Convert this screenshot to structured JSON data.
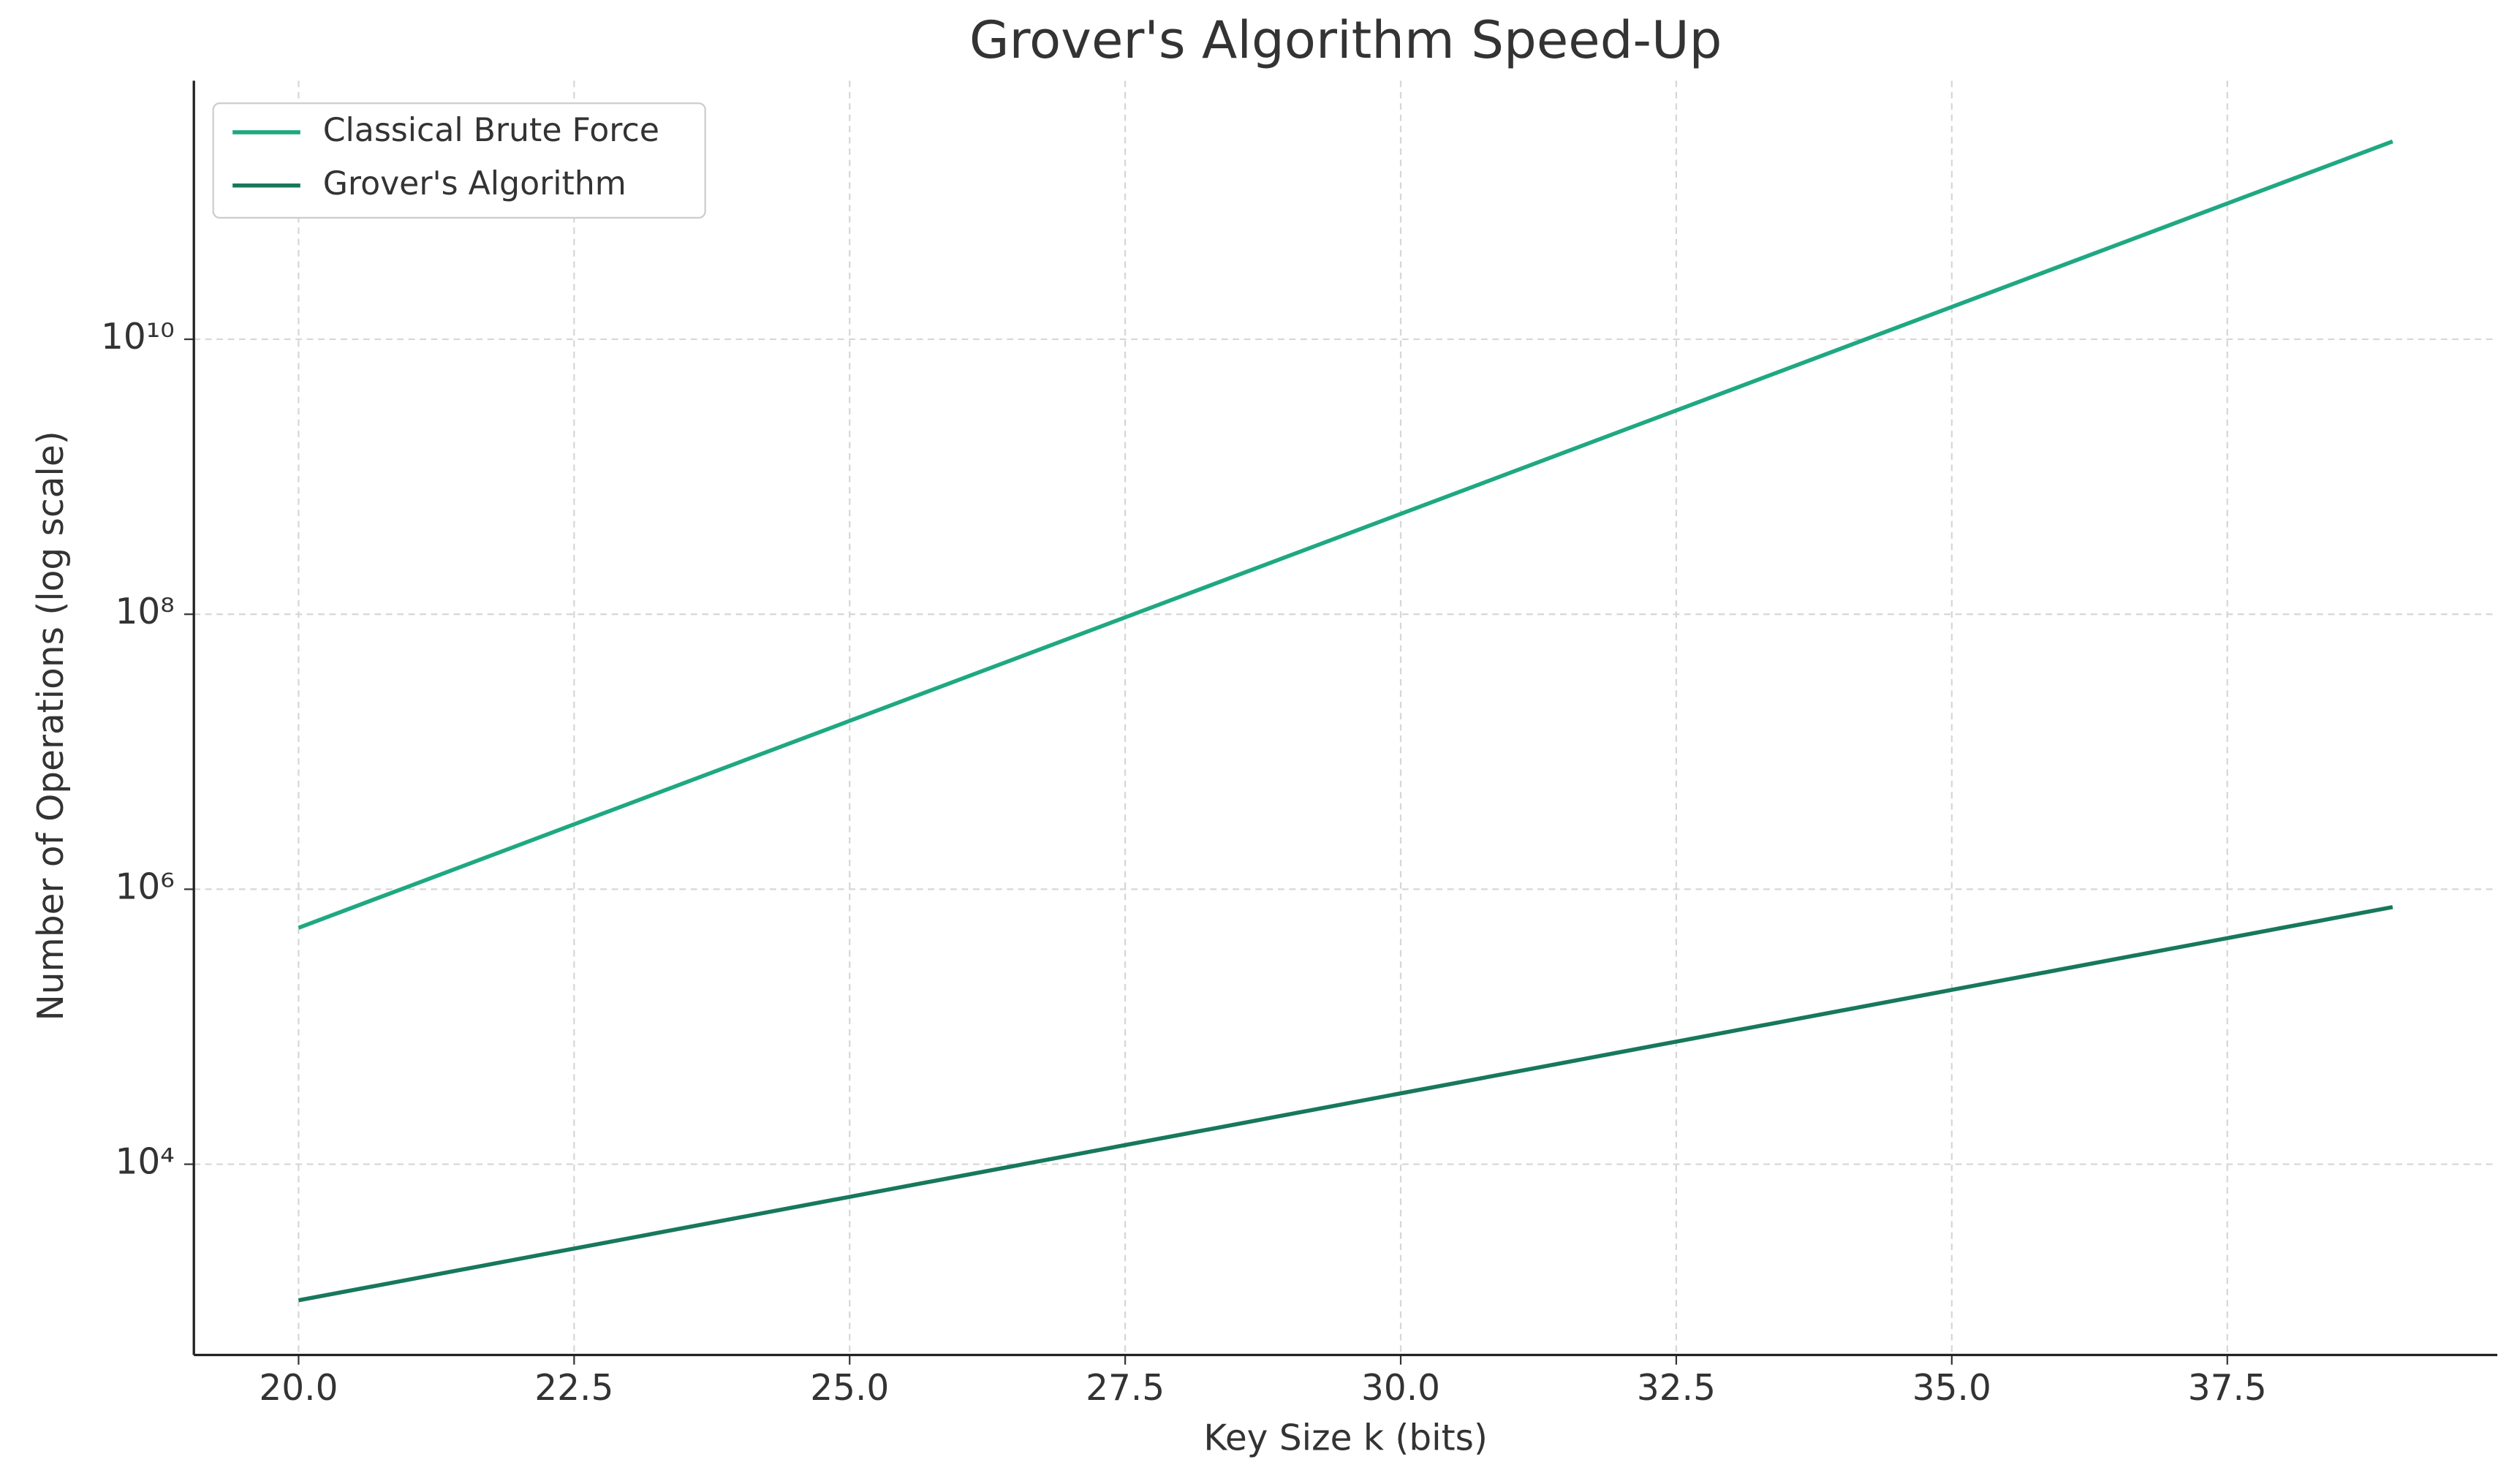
{
  "chart_data": {
    "type": "line",
    "title": "Grover's Algorithm Speed-Up",
    "x_label": "Key Size k (bits)",
    "y_label": "Number of Operations (log scale)",
    "x": [
      20,
      21,
      22,
      23,
      24,
      25,
      26,
      27,
      28,
      29,
      30,
      31,
      32,
      33,
      34,
      35,
      36,
      37,
      38,
      39
    ],
    "series": [
      {
        "name": "Classical Brute Force",
        "color": "#1fa882",
        "values": [
          524288,
          1048576,
          2097152,
          4194304,
          8388608,
          16777216,
          33554432,
          67108864,
          134217728,
          268435456,
          536870912,
          1073741824,
          2147483648,
          4294967296,
          8589934592,
          17179869184,
          34359738368,
          68719476736,
          137438953472,
          274877906944
        ]
      },
      {
        "name": "Grover's Algorithm",
        "color": "#17785c",
        "values": [
          1024,
          1448.15,
          2048,
          2896.31,
          4096,
          5792.62,
          8192,
          11585.24,
          16384,
          23170.48,
          32768,
          46340.95,
          65536,
          92681.9,
          131072,
          185363.8,
          262144,
          370727.6,
          524288,
          741455.2
        ]
      }
    ],
    "xlim": [
      19.05,
      39.95
    ],
    "xticks": [
      {
        "value": 20,
        "label": "20.0"
      },
      22.5,
      {
        "value": 25,
        "label": "25.0"
      },
      27.5,
      {
        "value": 30,
        "label": "30.0"
      },
      32.5,
      {
        "value": 35,
        "label": "35.0"
      },
      37.5
    ],
    "ylim": [
      410,
      760000000000
    ],
    "yscale": "log",
    "yticks": [
      {
        "value": 10000,
        "label": "10⁴"
      },
      {
        "value": 1000000,
        "label": "10⁶"
      },
      {
        "value": 100000000,
        "label": "10⁸"
      },
      {
        "value": 10000000000,
        "label": "10¹⁰"
      }
    ],
    "grid": true,
    "legend": "upper left"
  }
}
